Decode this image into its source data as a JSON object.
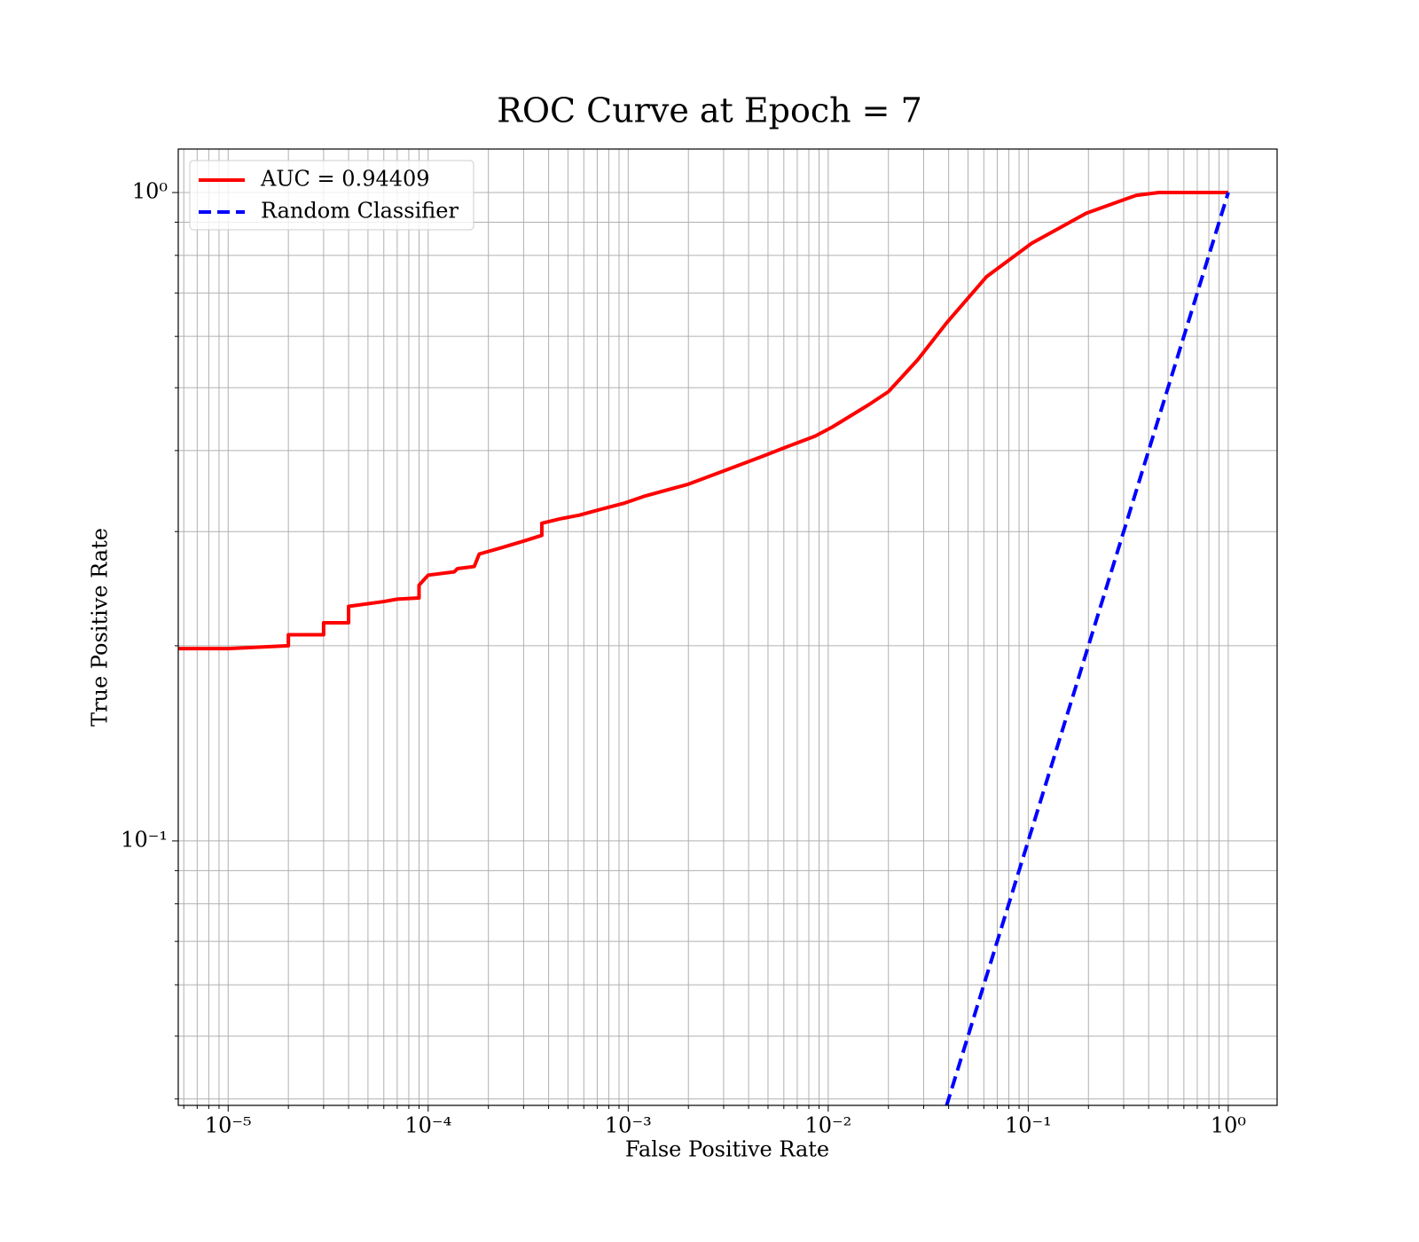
{
  "chart_data": {
    "type": "line",
    "title": "ROC Curve at Epoch = 7",
    "xlabel": "False Positive Rate",
    "ylabel": "True Positive Rate",
    "xscale": "log",
    "yscale": "log",
    "grid": true,
    "legend": "upper left",
    "xlim": [
      5.63e-06,
      1.755
    ],
    "ylim": [
      0.0391,
      1.167
    ],
    "xticks": [
      {
        "value": 1e-05,
        "label": "10⁻⁵"
      },
      {
        "value": 0.0001,
        "label": "10⁻⁴"
      },
      {
        "value": 0.001,
        "label": "10⁻³"
      },
      {
        "value": 0.01,
        "label": "10⁻²"
      },
      {
        "value": 0.1,
        "label": "10⁻¹"
      },
      {
        "value": 1,
        "label": "10⁰"
      }
    ],
    "yticks": [
      {
        "value": 0.1,
        "label": "10⁻¹"
      },
      {
        "value": 1,
        "label": "10⁰"
      }
    ],
    "xminorticks": [
      6e-06,
      7e-06,
      8e-06,
      9e-06,
      2e-05,
      3e-05,
      4e-05,
      5e-05,
      6e-05,
      7e-05,
      8e-05,
      9e-05,
      0.0002,
      0.0003,
      0.0004,
      0.0005,
      0.0006,
      0.0007,
      0.0008,
      0.0009,
      0.002,
      0.003,
      0.004,
      0.005,
      0.006,
      0.007,
      0.008,
      0.009,
      0.02,
      0.03,
      0.04,
      0.05,
      0.06,
      0.07,
      0.08,
      0.09,
      0.2,
      0.3,
      0.4,
      0.5,
      0.6,
      0.7,
      0.8,
      0.9
    ],
    "yminorticks": [
      0.04,
      0.05,
      0.06,
      0.07,
      0.08,
      0.09,
      0.2,
      0.3,
      0.4,
      0.5,
      0.6,
      0.7,
      0.8,
      0.9
    ],
    "series": [
      {
        "name": "AUC = 0.94409",
        "color": "#ff0000",
        "dash": "solid",
        "x": [
          5.63e-06,
          1e-05,
          2e-05,
          2e-05,
          3e-05,
          3e-05,
          4e-05,
          4e-05,
          6e-05,
          7e-05,
          9e-05,
          9e-05,
          0.0001,
          0.000135,
          0.00014,
          0.00017,
          0.00018,
          0.00023,
          0.0003,
          0.00037,
          0.00037,
          0.00046,
          0.00057,
          0.00071,
          0.00096,
          0.0012,
          0.002,
          0.003,
          0.0046,
          0.0063,
          0.0086,
          0.0105,
          0.016,
          0.02,
          0.028,
          0.039,
          0.062,
          0.104,
          0.195,
          0.346,
          0.45,
          1
        ],
        "values": [
          0.198,
          0.198,
          0.2,
          0.208,
          0.208,
          0.217,
          0.217,
          0.23,
          0.234,
          0.236,
          0.237,
          0.248,
          0.257,
          0.26,
          0.263,
          0.265,
          0.277,
          0.283,
          0.29,
          0.296,
          0.309,
          0.314,
          0.318,
          0.324,
          0.332,
          0.34,
          0.355,
          0.372,
          0.391,
          0.406,
          0.421,
          0.435,
          0.471,
          0.493,
          0.552,
          0.629,
          0.742,
          0.835,
          0.929,
          0.99,
          1,
          1
        ]
      },
      {
        "name": "Random Classifier",
        "color": "#0000ff",
        "dash": "dashed",
        "x": [
          0.039,
          1
        ],
        "values": [
          0.039,
          1
        ]
      }
    ]
  }
}
